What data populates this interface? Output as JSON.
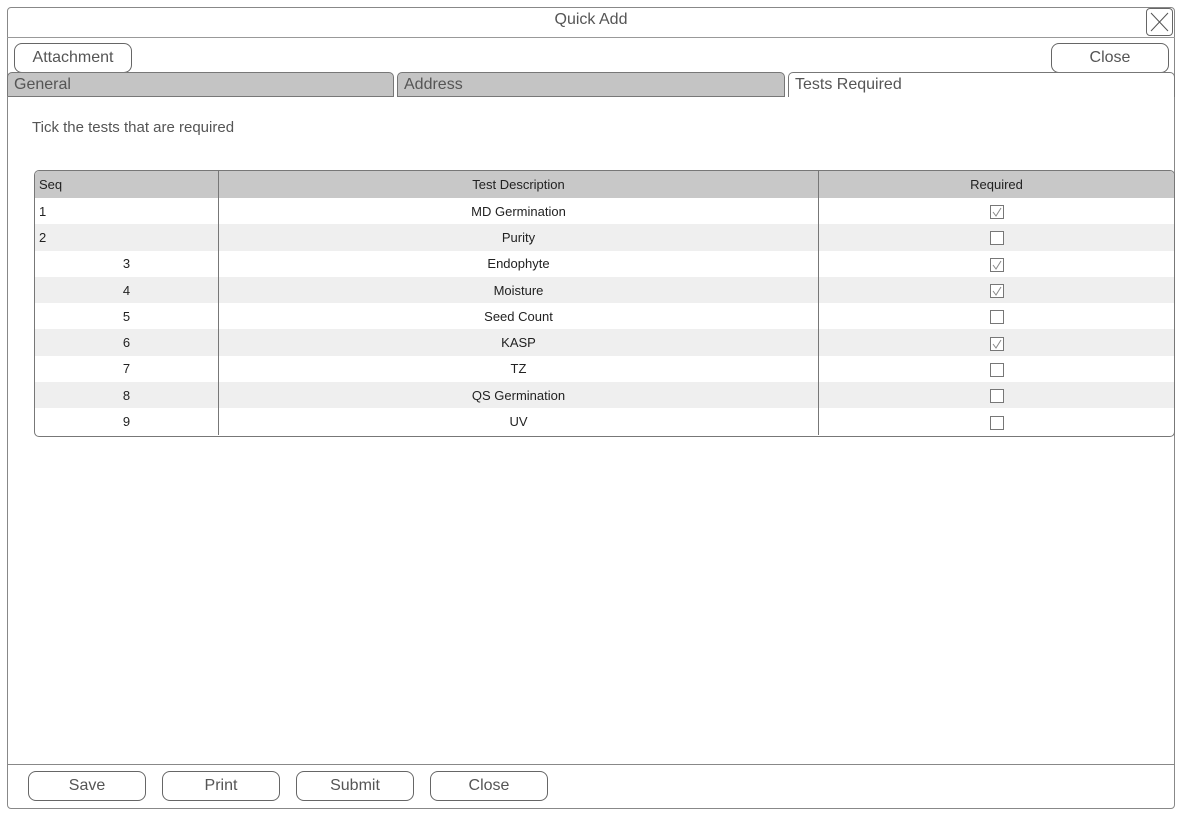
{
  "window": {
    "title": "Quick Add"
  },
  "toolbar": {
    "attachment": "Attachment",
    "close": "Close"
  },
  "tabs": [
    {
      "label": "General"
    },
    {
      "label": "Address"
    },
    {
      "label": "Tests Required"
    }
  ],
  "instruction": "Tick the tests that are required",
  "table": {
    "headers": [
      "Seq",
      "Test Description",
      "Required"
    ],
    "rows": [
      {
        "seq": "1",
        "desc": "MD Germination",
        "required": true
      },
      {
        "seq": "2",
        "desc": "Purity",
        "required": false
      },
      {
        "seq": "3",
        "desc": "Endophyte",
        "required": true
      },
      {
        "seq": "4",
        "desc": "Moisture",
        "required": true
      },
      {
        "seq": "5",
        "desc": "Seed Count",
        "required": false
      },
      {
        "seq": "6",
        "desc": "KASP",
        "required": true
      },
      {
        "seq": "7",
        "desc": "TZ",
        "required": false
      },
      {
        "seq": "8",
        "desc": "QS Germination",
        "required": false
      },
      {
        "seq": "9",
        "desc": "UV",
        "required": false
      }
    ]
  },
  "footer": {
    "save": "Save",
    "print": "Print",
    "submit": "Submit",
    "close": "Close"
  }
}
